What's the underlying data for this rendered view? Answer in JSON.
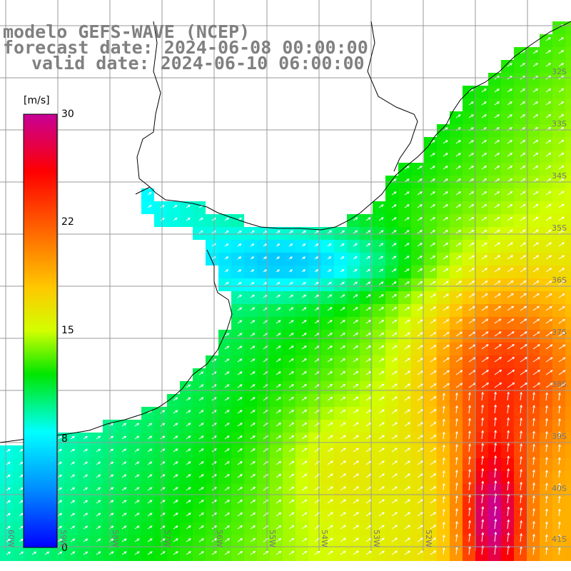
{
  "title": {
    "line1": "modelo GEFS-WAVE (NCEP)",
    "line2": "forecast date: 2024-06-08 00:00:00",
    "line3": "valid date: 2024-06-10 06:00:00"
  },
  "colorbar": {
    "unit": "[m/s]",
    "ticks": [
      "30",
      "22",
      "15",
      "8",
      "0"
    ],
    "min": 0,
    "max": 30
  },
  "grid": {
    "lat_labels": [
      "32S",
      "33S",
      "34S",
      "35S",
      "36S",
      "37S",
      "38S",
      "39S",
      "40S",
      "41S"
    ],
    "lon_labels": [
      "60W",
      "59W",
      "58W",
      "57W",
      "56W",
      "55W",
      "54W",
      "53W",
      "52W"
    ]
  },
  "colors": {
    "land": "#ffffff",
    "coast": "#000000",
    "gridline": "#999999",
    "arrow": "#ffffff"
  }
}
